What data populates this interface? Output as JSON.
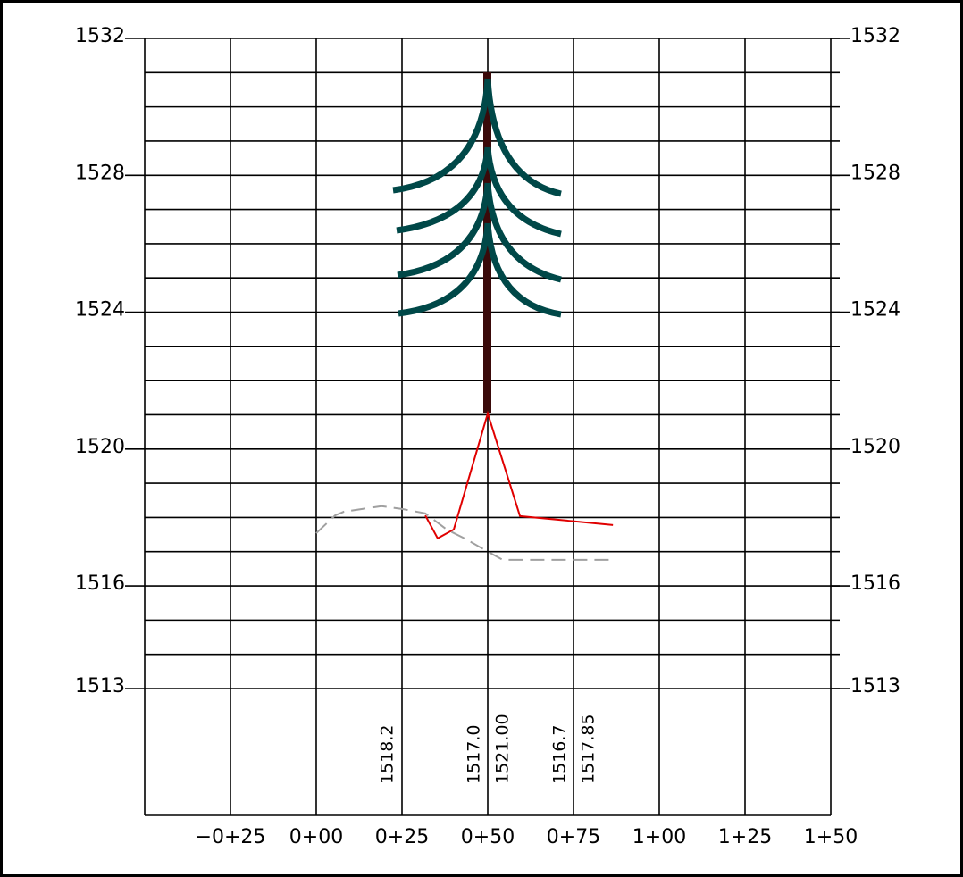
{
  "chart_data": {
    "type": "line",
    "xlim": [
      -50,
      150
    ],
    "xticks": [
      {
        "value": -25,
        "label": "−0+25"
      },
      {
        "value": 0,
        "label": "0+00"
      },
      {
        "value": 25,
        "label": "0+25"
      },
      {
        "value": 50,
        "label": "0+50"
      },
      {
        "value": 75,
        "label": "0+75"
      },
      {
        "value": 100,
        "label": "1+00"
      },
      {
        "value": 125,
        "label": "1+25"
      },
      {
        "value": 150,
        "label": "1+50"
      }
    ],
    "ylim": [
      1513,
      1532
    ],
    "yticks": [
      1513,
      1516,
      1520,
      1524,
      1528,
      1532
    ],
    "ygrid": [
      1513,
      1514,
      1515,
      1516,
      1517,
      1518,
      1519,
      1520,
      1521,
      1522,
      1523,
      1524,
      1525,
      1526,
      1527,
      1528,
      1529,
      1530,
      1531,
      1532
    ],
    "series": [
      {
        "color": "#e00000",
        "dashed": false,
        "x": [
          31.8,
          35.4,
          40.1,
          50,
          59.4,
          86.5
        ],
        "values": [
          1518.06,
          1517.39,
          1517.65,
          1521.04,
          1518.04,
          1517.78
        ]
      },
      {
        "color": "#a0a0a0",
        "dashed": true,
        "x": [
          0,
          5.5,
          8.1,
          19.0,
          25,
          31.8,
          38.0,
          43.2,
          49.7,
          54.4,
          86.5
        ],
        "values": [
          1517.54,
          1518.06,
          1518.17,
          1518.33,
          1518.25,
          1518.12,
          1517.65,
          1517.39,
          1517.02,
          1516.76,
          1516.76
        ]
      }
    ],
    "station_labels": [
      {
        "x": 20.8,
        "label": "1518.2"
      },
      {
        "x": 46.1,
        "label": "1517.0"
      },
      {
        "x": 54.4,
        "label": "1521.00"
      },
      {
        "x": 71.1,
        "label": "1516.7"
      },
      {
        "x": 79.4,
        "label": "1517.85"
      }
    ]
  }
}
